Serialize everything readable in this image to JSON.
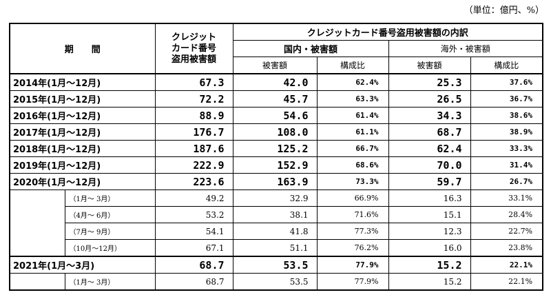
{
  "unit_note": "（単位：億円、%）",
  "headers": {
    "period": "期　　間",
    "total": "クレジット\nカード番号\n盗用被害額",
    "breakdown": "クレジットカード番号盗用被害額の内訳",
    "domestic": "国内・被害額",
    "overseas": "海外・被害額",
    "damage": "被害額",
    "ratio": "構成比"
  },
  "annual_rows": [
    {
      "period": "2014年(1月～12月)",
      "total": "67.3",
      "dom": "42.0",
      "dom_pct": "62.4%",
      "ovs": "25.3",
      "ovs_pct": "37.6%"
    },
    {
      "period": "2015年(1月～12月)",
      "total": "72.2",
      "dom": "45.7",
      "dom_pct": "63.3%",
      "ovs": "26.5",
      "ovs_pct": "36.7%"
    },
    {
      "period": "2016年(1月～12月)",
      "total": "88.9",
      "dom": "54.6",
      "dom_pct": "61.4%",
      "ovs": "34.3",
      "ovs_pct": "38.6%"
    },
    {
      "period": "2017年(1月～12月)",
      "total": "176.7",
      "dom": "108.0",
      "dom_pct": "61.1%",
      "ovs": "68.7",
      "ovs_pct": "38.9%"
    },
    {
      "period": "2018年(1月～12月)",
      "total": "187.6",
      "dom": "125.2",
      "dom_pct": "66.7%",
      "ovs": "62.4",
      "ovs_pct": "33.3%"
    },
    {
      "period": "2019年(1月～12月)",
      "total": "222.9",
      "dom": "152.9",
      "dom_pct": "68.6%",
      "ovs": "70.0",
      "ovs_pct": "31.4%"
    },
    {
      "period": "2020年(1月～12月)",
      "total": "223.6",
      "dom": "163.9",
      "dom_pct": "73.3%",
      "ovs": "59.7",
      "ovs_pct": "26.7%"
    }
  ],
  "q2020": [
    {
      "period": "（1月～ 3月）",
      "total": "49.2",
      "dom": "32.9",
      "dom_pct": "66.9%",
      "ovs": "16.3",
      "ovs_pct": "33.1%"
    },
    {
      "period": "（4月～ 6月）",
      "total": "53.2",
      "dom": "38.1",
      "dom_pct": "71.6%",
      "ovs": "15.1",
      "ovs_pct": "28.4%"
    },
    {
      "period": "（7月～ 9月）",
      "total": "54.1",
      "dom": "41.8",
      "dom_pct": "77.3%",
      "ovs": "12.3",
      "ovs_pct": "22.7%"
    },
    {
      "period": "（10月～12月）",
      "total": "67.1",
      "dom": "51.1",
      "dom_pct": "76.2%",
      "ovs": "16.0",
      "ovs_pct": "23.8%"
    }
  ],
  "row2021": {
    "period": "2021年(1月～3月)",
    "total": "68.7",
    "dom": "53.5",
    "dom_pct": "77.9%",
    "ovs": "15.2",
    "ovs_pct": "22.1%"
  },
  "q2021": [
    {
      "period": "（1月～ 3月）",
      "total": "68.7",
      "dom": "53.5",
      "dom_pct": "77.9%",
      "ovs": "15.2",
      "ovs_pct": "22.1%"
    }
  ]
}
